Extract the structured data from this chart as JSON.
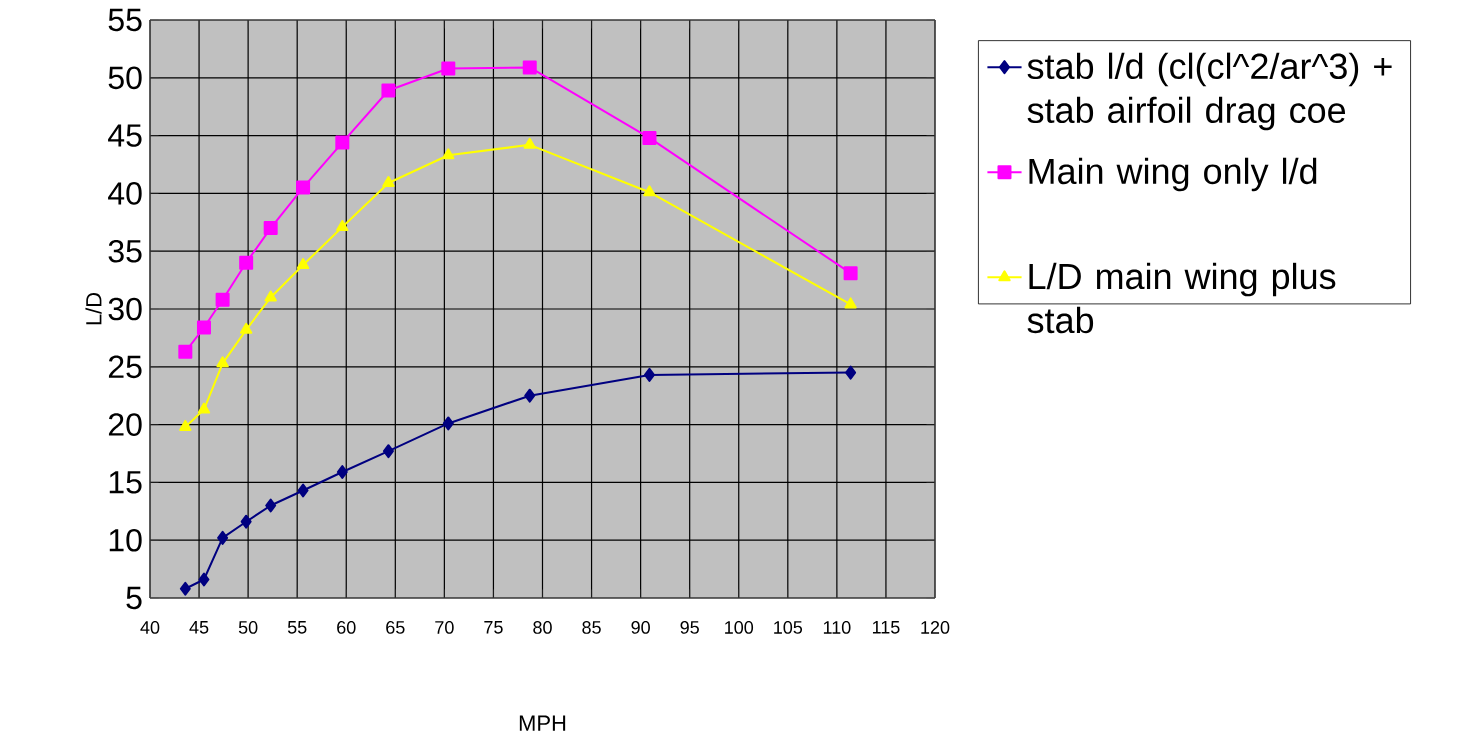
{
  "chart_data": {
    "type": "line",
    "xlabel": "MPH",
    "ylabel": "L/D",
    "x": [
      43.6,
      45.5,
      47.4,
      49.8,
      52.3,
      55.6,
      59.6,
      64.3,
      70.4,
      78.7,
      90.9,
      111.4
    ],
    "series": [
      {
        "name": "stab l/d (cl(cl^2/ar^3) + stab airfoil drag coe",
        "color": "#000080",
        "marker": "diamond",
        "values": [
          5.8,
          6.6,
          10.2,
          11.6,
          13.0,
          14.3,
          15.9,
          17.7,
          20.1,
          22.5,
          24.3,
          24.5
        ]
      },
      {
        "name": "Main wing only l/d",
        "color": "#ff00ff",
        "marker": "square",
        "values": [
          26.3,
          28.4,
          30.8,
          34.0,
          37.0,
          40.5,
          44.4,
          48.9,
          50.8,
          50.9,
          44.8,
          33.1
        ]
      },
      {
        "name": "L/D main wing plus stab",
        "color": "#ffff00",
        "marker": "triangle",
        "values": [
          19.8,
          21.3,
          25.3,
          28.2,
          31.0,
          33.8,
          37.1,
          40.9,
          43.3,
          44.2,
          40.1,
          30.4
        ]
      }
    ],
    "xlim": [
      40,
      120
    ],
    "xticks": [
      40,
      45,
      50,
      55,
      60,
      65,
      70,
      75,
      80,
      85,
      90,
      95,
      100,
      105,
      110,
      115,
      120
    ],
    "ylim": [
      5,
      55
    ],
    "yticks": [
      5,
      10,
      15,
      20,
      25,
      30,
      35,
      40,
      45,
      50,
      55
    ],
    "grid": true,
    "legend": "right"
  }
}
